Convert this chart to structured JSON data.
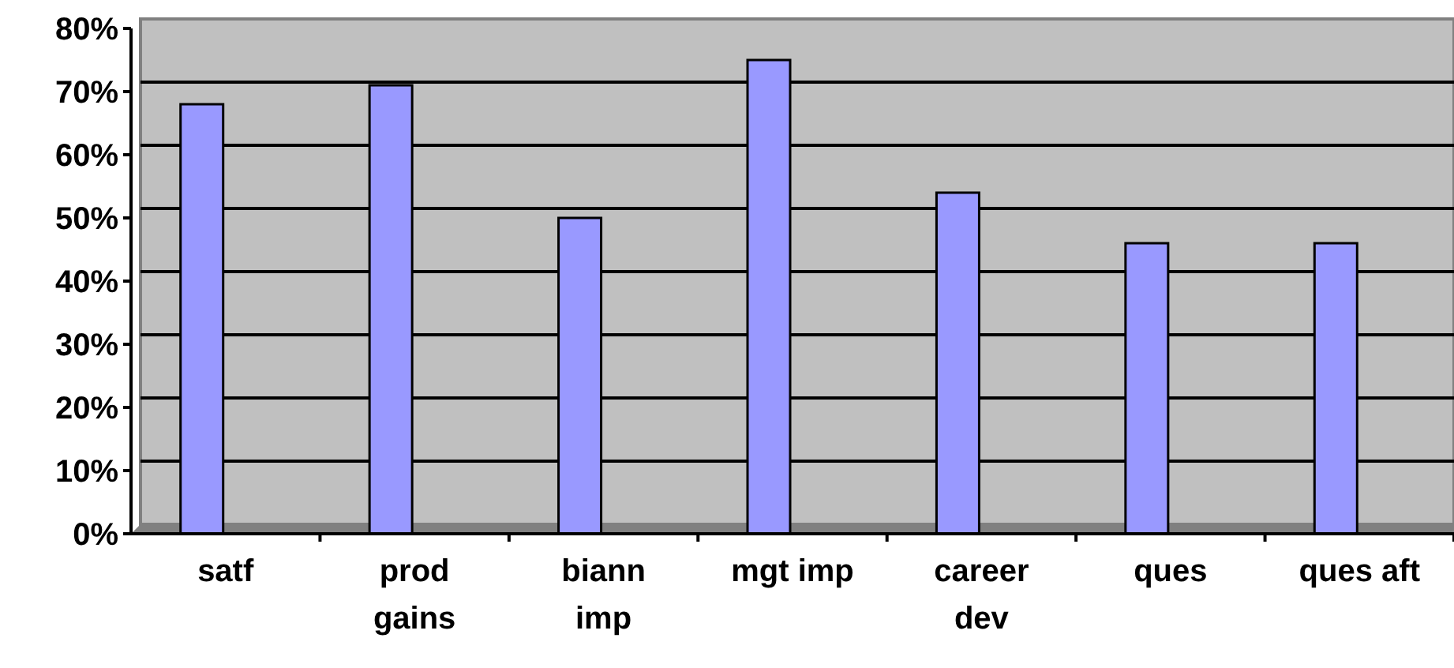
{
  "chart_data": {
    "type": "bar",
    "categories": [
      "satf",
      "prod gains",
      "biann imp",
      "mgt imp",
      "career dev",
      "ques",
      "ques aft"
    ],
    "values": [
      68,
      71,
      50,
      75,
      54,
      46,
      46
    ],
    "color": "#9999ff",
    "ylim": [
      0,
      80
    ],
    "yticks": [
      {
        "value": 0,
        "label": "0%"
      },
      {
        "value": 10,
        "label": "10%"
      },
      {
        "value": 20,
        "label": "20%"
      },
      {
        "value": 30,
        "label": "30%"
      },
      {
        "value": 40,
        "label": "40%"
      },
      {
        "value": 50,
        "label": "50%"
      },
      {
        "value": 60,
        "label": "60%"
      },
      {
        "value": 70,
        "label": "70%"
      },
      {
        "value": 80,
        "label": "80%"
      }
    ],
    "grid": "y"
  }
}
